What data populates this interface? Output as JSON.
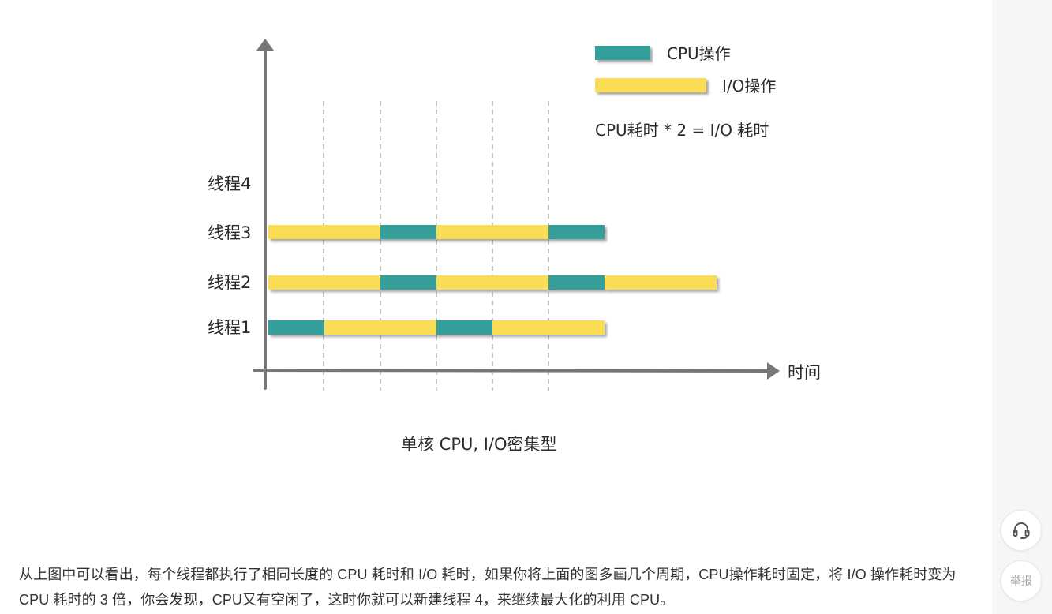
{
  "diagram": {
    "legend": {
      "cpu_label": "CPU操作",
      "io_label": "I/O操作",
      "formula": "CPU耗时 * 2 = I/O 耗时"
    },
    "axis": {
      "x_label": "时间"
    },
    "caption": "单核 CPU, I/O密集型",
    "colors": {
      "cpu": "#34a09b",
      "io": "#fadd55",
      "axis": "#777777"
    },
    "threads": [
      {
        "label": "线程1",
        "segments": [
          "cpu",
          "io",
          "cpu",
          "io"
        ]
      },
      {
        "label": "线程2",
        "segments": [
          "io",
          "cpu",
          "io",
          "cpu",
          "io"
        ]
      },
      {
        "label": "线程3",
        "segments": [
          "io",
          "cpu",
          "io",
          "cpu"
        ]
      },
      {
        "label": "线程4",
        "segments": []
      }
    ]
  },
  "article": {
    "paragraph": "从上图中可以看出，每个线程都执行了相同长度的 CPU 耗时和 I/O 耗时，如果你将上面的图多画几个周期，CPU操作耗时固定，将 I/O 操作耗时变为 CPU 耗时的 3 倍，你会发现，CPU又有空闲了，这时你就可以新建线程 4，来继续最大化的利用 CPU。"
  },
  "sidebar": {
    "support_icon": "headset-icon",
    "report_label": "举报"
  }
}
